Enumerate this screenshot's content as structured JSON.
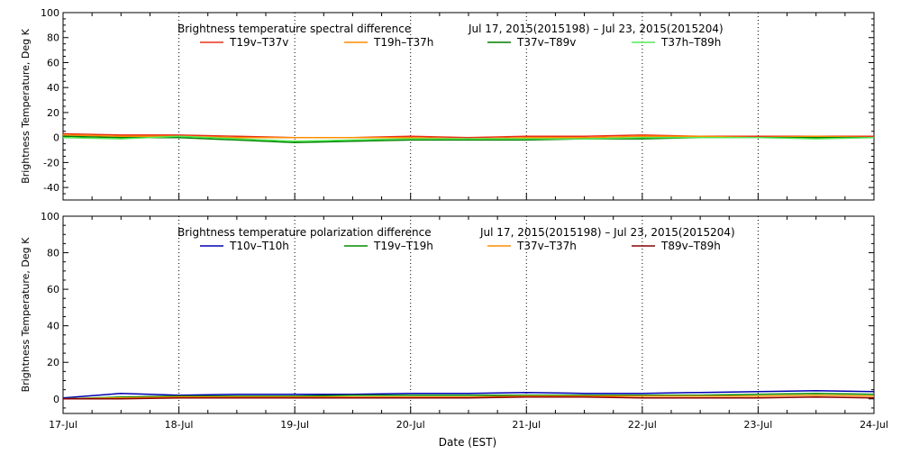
{
  "xlabel": "Date (EST)",
  "chart_data": [
    {
      "type": "line",
      "title": "Brightness temperature spectral difference",
      "date_range": "Jul 17, 2015(2015198) – Jul 23, 2015(2015204)",
      "ylabel": "Brightness Temperature, Deg K",
      "xlabel": "Date (EST)",
      "ylim": [
        -50,
        100
      ],
      "yticks": [
        -40,
        -20,
        0,
        20,
        40,
        60,
        80,
        100
      ],
      "x_ticklabels": [
        "17-Jul",
        "18-Jul",
        "19-Jul",
        "20-Jul",
        "21-Jul",
        "22-Jul",
        "23-Jul",
        "24-Jul"
      ],
      "grid": "vertical dotted at day boundaries",
      "legend_position": "top",
      "x": [
        "2015-07-17T00:00",
        "2015-07-17T12:00",
        "2015-07-18T00:00",
        "2015-07-18T12:00",
        "2015-07-19T00:00",
        "2015-07-19T12:00",
        "2015-07-20T00:00",
        "2015-07-20T12:00",
        "2015-07-21T00:00",
        "2015-07-21T12:00",
        "2015-07-22T00:00",
        "2015-07-22T12:00",
        "2015-07-23T00:00",
        "2015-07-23T12:00",
        "2015-07-24T00:00"
      ],
      "series": [
        {
          "name": "T19v–T37v",
          "color": "#e8311a",
          "values": [
            3,
            2,
            2,
            1,
            0,
            0,
            1,
            0,
            1,
            1,
            2,
            1,
            1,
            1,
            1
          ]
        },
        {
          "name": "T19h–T37h",
          "color": "#ff8c00",
          "values": [
            2,
            1,
            1,
            0,
            0,
            0,
            0,
            -1,
            0,
            0,
            1,
            1,
            0,
            1,
            0
          ]
        },
        {
          "name": "T37v–T89v",
          "color": "#007f00",
          "values": [
            1,
            0,
            0,
            -2,
            -4,
            -3,
            -2,
            -2,
            -2,
            -1,
            -1,
            0,
            0,
            0,
            0
          ]
        },
        {
          "name": "T37h–T89h",
          "color": "#55e855",
          "values": [
            0,
            -1,
            1,
            -1,
            -3,
            -2,
            -1,
            -1,
            -1,
            -1,
            0,
            0,
            0,
            -1,
            0
          ]
        }
      ]
    },
    {
      "type": "line",
      "title": "Brightness temperature polarization difference",
      "date_range": "Jul 17, 2015(2015198) – Jul 23, 2015(2015204)",
      "ylabel": "Brightness Temperature, Deg K",
      "xlabel": "Date (EST)",
      "ylim": [
        -8,
        100
      ],
      "yticks": [
        0,
        20,
        40,
        60,
        80,
        100
      ],
      "x_ticklabels": [
        "17-Jul",
        "18-Jul",
        "19-Jul",
        "20-Jul",
        "21-Jul",
        "22-Jul",
        "23-Jul",
        "24-Jul"
      ],
      "grid": "vertical dotted at day boundaries",
      "legend_position": "top",
      "x": [
        "2015-07-17T00:00",
        "2015-07-17T12:00",
        "2015-07-18T00:00",
        "2015-07-18T12:00",
        "2015-07-19T00:00",
        "2015-07-19T12:00",
        "2015-07-20T00:00",
        "2015-07-20T12:00",
        "2015-07-21T00:00",
        "2015-07-21T12:00",
        "2015-07-22T00:00",
        "2015-07-22T12:00",
        "2015-07-23T00:00",
        "2015-07-23T12:00",
        "2015-07-24T00:00"
      ],
      "series": [
        {
          "name": "T10v–T10h",
          "color": "#0000b0",
          "values": [
            0.5,
            3,
            2,
            2.5,
            2.5,
            2.5,
            3,
            3,
            3.5,
            3,
            3,
            3.5,
            4,
            4.5,
            4
          ]
        },
        {
          "name": "T19v–T19h",
          "color": "#008c00",
          "values": [
            0,
            1,
            1.5,
            1.5,
            1.5,
            2,
            2,
            2,
            2,
            2,
            2,
            2,
            2.5,
            3,
            2.5
          ]
        },
        {
          "name": "T37v–T37h",
          "color": "#ff8c00",
          "values": [
            0,
            0.5,
            1,
            1,
            1,
            1,
            1,
            1,
            1.5,
            1.5,
            1.5,
            1.5,
            1.5,
            2,
            1.5
          ]
        },
        {
          "name": "T89v–T89h",
          "color": "#8b0000",
          "values": [
            0,
            0,
            0.5,
            0.5,
            0.5,
            0.5,
            0.5,
            0.5,
            1,
            1,
            0.5,
            0.5,
            0.5,
            1,
            0.5
          ]
        }
      ]
    }
  ]
}
